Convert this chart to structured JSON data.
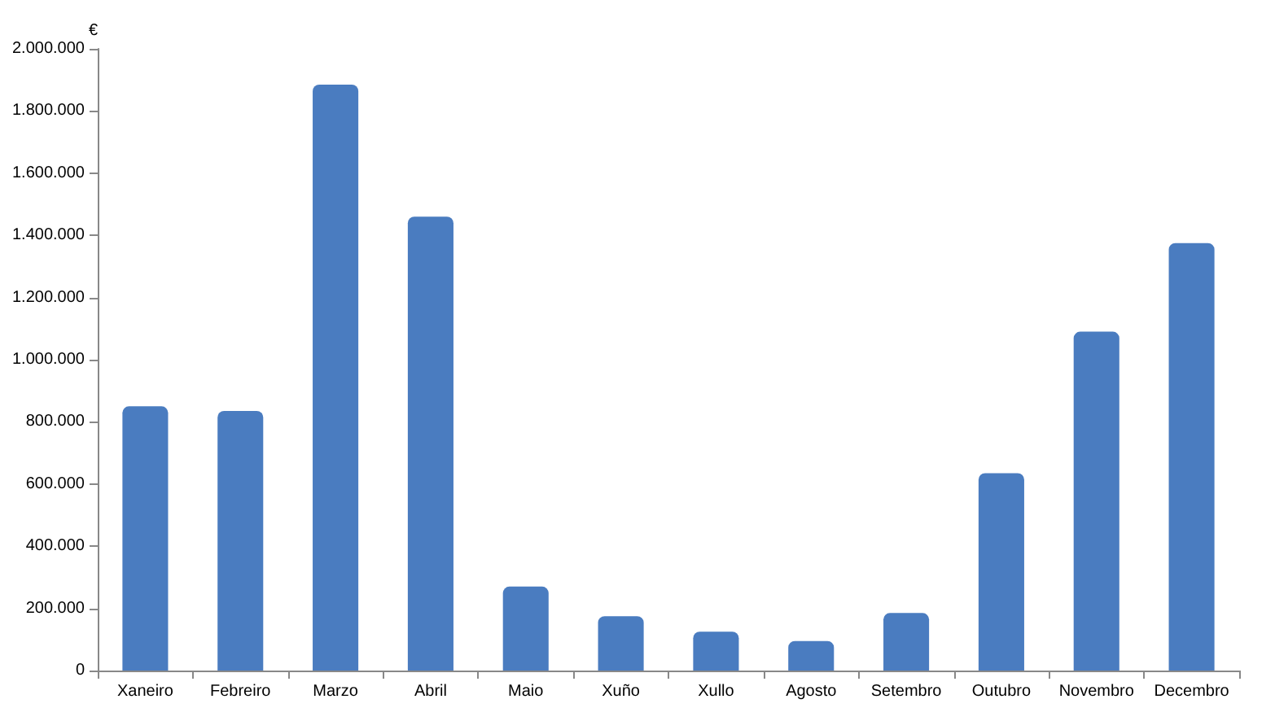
{
  "chart_data": {
    "type": "bar",
    "ylabel": "€",
    "categories": [
      "Xaneiro",
      "Febreiro",
      "Marzo",
      "Abril",
      "Maio",
      "Xuño",
      "Xullo",
      "Agosto",
      "Setembro",
      "Outubro",
      "Novembro",
      "Decembro"
    ],
    "values": [
      850000,
      835000,
      1885000,
      1460000,
      270000,
      175000,
      125000,
      95000,
      185000,
      635000,
      1090000,
      1375000
    ],
    "color": "#4a7cc0",
    "ylim": [
      0,
      2000000
    ],
    "yticks": [
      0,
      {
        "value": 200000,
        "label": "200.000"
      },
      {
        "value": 400000,
        "label": "400.000"
      },
      {
        "value": 600000,
        "label": "600.000"
      },
      {
        "value": 800000,
        "label": "800.000"
      },
      {
        "value": 1000000,
        "label": "1.000.000"
      },
      {
        "value": 1200000,
        "label": "1.200.000"
      },
      {
        "value": 1400000,
        "label": "1.400.000"
      },
      {
        "value": 1600000,
        "label": "1.600.000"
      },
      {
        "value": 1800000,
        "label": "1.800.000"
      },
      {
        "value": 2000000,
        "label": "2.000.000"
      }
    ],
    "grid": false
  }
}
